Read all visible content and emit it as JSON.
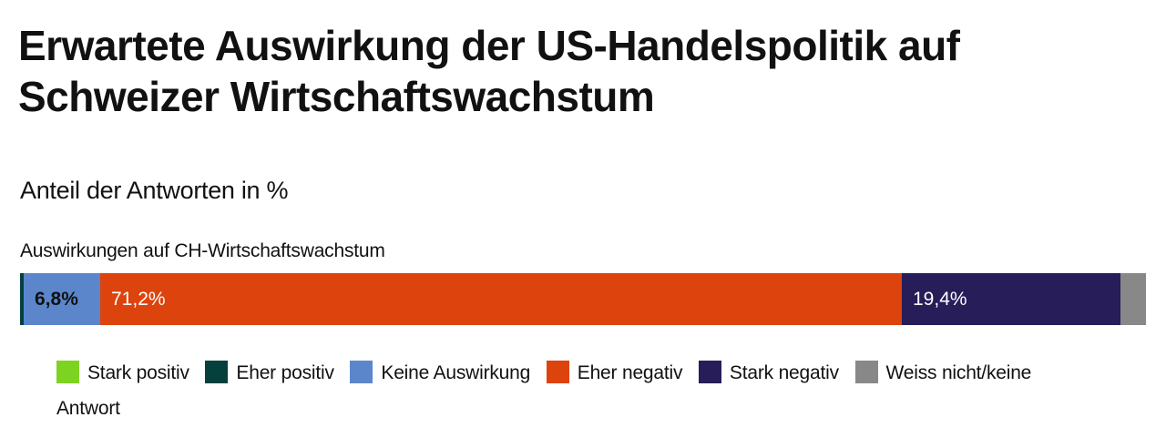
{
  "title": "Erwartete Auswirkung der US-Handelspolitik auf Schweizer Wirtschaftswachstum",
  "subtitle": "Anteil der Antworten in %",
  "chart_data": {
    "type": "bar",
    "orientation": "horizontal",
    "stacked": true,
    "categories": [
      "Auswirkungen auf CH-Wirtschaftswachstum"
    ],
    "series": [
      {
        "name": "Stark positiv",
        "values": [
          0
        ],
        "color": "#7ed321",
        "label": ""
      },
      {
        "name": "Eher positiv",
        "values": [
          0.3
        ],
        "color": "#05403d",
        "label": ""
      },
      {
        "name": "Keine Auswirkung",
        "values": [
          6.8
        ],
        "color": "#5b86cc",
        "label": "6,8%",
        "label_color": "#111111"
      },
      {
        "name": "Eher negativ",
        "values": [
          71.2
        ],
        "color": "#dd430d",
        "label": "71,2%",
        "label_color": "#ffffff"
      },
      {
        "name": "Stark negativ",
        "values": [
          19.4
        ],
        "color": "#261d59",
        "label": "19,4%",
        "label_color": "#ffffff"
      },
      {
        "name": "Weiss nicht/keine Antwort",
        "values": [
          2.3
        ],
        "color": "#888888",
        "label": ""
      }
    ],
    "xlim": [
      0,
      100
    ],
    "grid": false,
    "legend_position": "bottom"
  }
}
